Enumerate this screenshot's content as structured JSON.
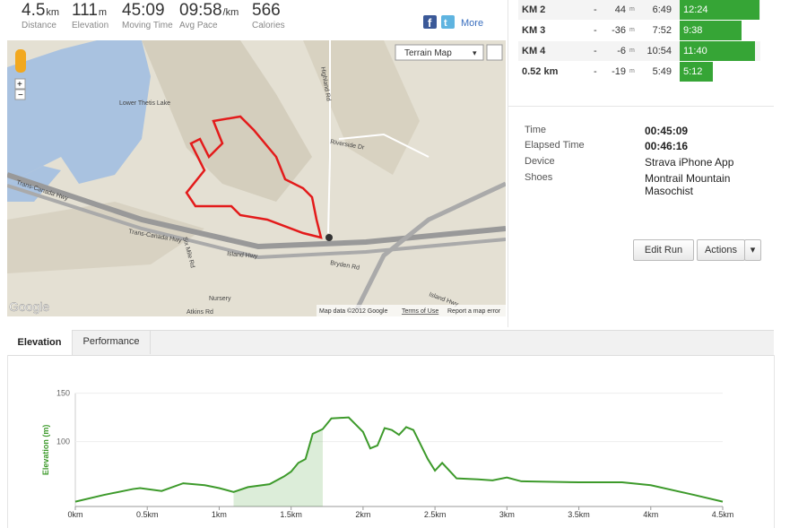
{
  "stats": [
    {
      "value": "4.5",
      "unit": "km",
      "label": "Distance"
    },
    {
      "value": "111",
      "unit": "m",
      "label": "Elevation"
    },
    {
      "value": "45:09",
      "label": "Moving Time"
    },
    {
      "value": "09:58",
      "unit": "/km",
      "label": "Avg Pace"
    },
    {
      "value": "566",
      "label": "Calories"
    }
  ],
  "share": {
    "more": "More"
  },
  "splits": [
    {
      "name": "KM 2",
      "dash": "-",
      "elev": "44",
      "unit": "m",
      "time": "6:49",
      "pace": "12:24"
    },
    {
      "name": "KM 3",
      "dash": "-",
      "elev": "-36",
      "unit": "m",
      "time": "7:52",
      "pace": "9:38"
    },
    {
      "name": "KM 4",
      "dash": "-",
      "elev": "-6",
      "unit": "m",
      "time": "10:54",
      "pace": "11:40"
    },
    {
      "name": "0.52 km",
      "dash": "-",
      "elev": "-19",
      "unit": "m",
      "time": "5:49",
      "pace": "5:12"
    }
  ],
  "details": [
    {
      "label": "Time",
      "value": "00:45:09"
    },
    {
      "label": "Elapsed Time",
      "value": "00:46:16"
    },
    {
      "label": "Device",
      "value": "Strava iPhone App"
    },
    {
      "label": "Shoes",
      "value": "Montrail Mountain Masochist"
    }
  ],
  "buttons": {
    "edit": "Edit Run",
    "actions": "Actions"
  },
  "map": {
    "type_select": "Terrain Map",
    "labels": [
      "Lower Thetis Lake",
      "Trans-Canada Hwy",
      "Trans-Canada Hwy",
      "Island Hwy",
      "Highland Rd",
      "Riverside Dr",
      "Bryden Rd",
      "Six Mile Rd",
      "Nursery",
      "Atkins Rd",
      "Island Hwy"
    ],
    "logo": "Google",
    "attribution": "Map data ©2012 Google",
    "terms": "Terms of Use",
    "report": "Report a map error"
  },
  "tabs": [
    "Elevation",
    "Performance"
  ],
  "chart_data": {
    "type": "line",
    "ylabel": "Elevation (m)",
    "color": "#3d9a2b",
    "highlight": [
      1.1,
      1.75
    ],
    "x": [
      0,
      0.2,
      0.4,
      0.45,
      0.6,
      0.75,
      0.9,
      1.0,
      1.1,
      1.2,
      1.35,
      1.45,
      1.5,
      1.55,
      1.6,
      1.65,
      1.72,
      1.78,
      1.9,
      2.0,
      2.05,
      2.1,
      2.15,
      2.2,
      2.25,
      2.3,
      2.35,
      2.45,
      2.5,
      2.55,
      2.65,
      2.8,
      2.9,
      3.0,
      3.1,
      3.5,
      3.8,
      4.0,
      4.3,
      4.5
    ],
    "series": [
      {
        "name": "Elevation",
        "color": "#3d9a2b",
        "values": [
          38,
          45,
          51,
          52,
          49,
          57,
          55,
          52,
          48,
          53,
          56,
          64,
          69,
          78,
          82,
          108,
          113,
          124,
          125,
          110,
          93,
          96,
          114,
          112,
          107,
          115,
          112,
          82,
          70,
          78,
          62,
          61,
          60,
          63,
          59,
          58,
          58,
          55,
          45,
          38
        ]
      }
    ],
    "xlim": [
      0,
      4.5
    ],
    "ylim": [
      33,
      150
    ],
    "xticks": [
      {
        "value": 0,
        "label": "0km"
      },
      {
        "value": 0.5,
        "label": "0.5km"
      },
      {
        "value": 1,
        "label": "1km"
      },
      {
        "value": 1.5,
        "label": "1.5km"
      },
      {
        "value": 2,
        "label": "2km"
      },
      {
        "value": 2.5,
        "label": "2.5km"
      },
      {
        "value": 3,
        "label": "3km"
      },
      {
        "value": 3.5,
        "label": "3.5km"
      },
      {
        "value": 4,
        "label": "4km"
      },
      {
        "value": 4.5,
        "label": "4.5km"
      }
    ],
    "yticks": [
      100,
      150
    ],
    "grid": true
  }
}
